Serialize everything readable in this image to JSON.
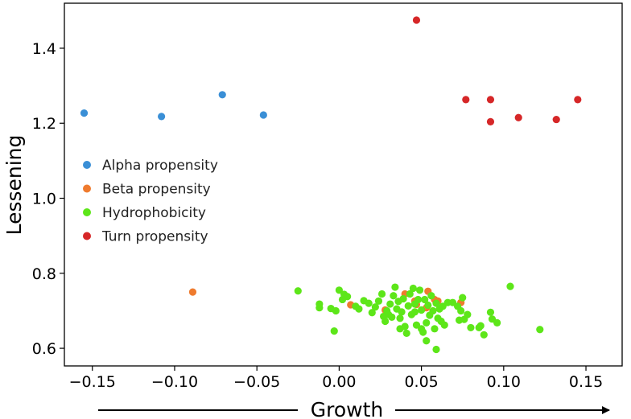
{
  "chart_data": {
    "type": "scatter",
    "xlabel": "Growth",
    "ylabel": "Lessening",
    "xlim": [
      -0.167,
      0.172
    ],
    "ylim": [
      0.553,
      1.52
    ],
    "xticks": [
      -0.15,
      -0.1,
      -0.05,
      0.0,
      0.05,
      0.1,
      0.15
    ],
    "xtick_labels": [
      "−0.15",
      "−0.10",
      "−0.05",
      "0.00",
      "0.05",
      "0.10",
      "0.15"
    ],
    "yticks": [
      0.6,
      0.8,
      1.0,
      1.2,
      1.4
    ],
    "ytick_labels": [
      "0.6",
      "0.8",
      "1.0",
      "1.2",
      "1.4"
    ],
    "legend_position": "center-left",
    "series": [
      {
        "name": "Alpha propensity",
        "color": "#3a8fd6",
        "points": [
          [
            -0.155,
            1.227
          ],
          [
            -0.108,
            1.218
          ],
          [
            -0.071,
            1.276
          ],
          [
            -0.046,
            1.222
          ]
        ]
      },
      {
        "name": "Beta propensity",
        "color": "#ef7b2e",
        "points": [
          [
            -0.089,
            0.75
          ],
          [
            0.007,
            0.716
          ],
          [
            0.028,
            0.702
          ],
          [
            0.04,
            0.745
          ],
          [
            0.046,
            0.726
          ],
          [
            0.047,
            0.717
          ],
          [
            0.053,
            0.708
          ],
          [
            0.054,
            0.752
          ],
          [
            0.058,
            0.73
          ],
          [
            0.06,
            0.726
          ],
          [
            0.074,
            0.722
          ]
        ]
      },
      {
        "name": "Hydrophobicity",
        "color": "#5de619",
        "points": [
          [
            -0.025,
            0.753
          ],
          [
            -0.012,
            0.708
          ],
          [
            -0.012,
            0.718
          ],
          [
            -0.005,
            0.706
          ],
          [
            -0.003,
            0.646
          ],
          [
            -0.002,
            0.7
          ],
          [
            0.0,
            0.755
          ],
          [
            0.002,
            0.73
          ],
          [
            0.003,
            0.744
          ],
          [
            0.005,
            0.738
          ],
          [
            0.01,
            0.712
          ],
          [
            0.012,
            0.705
          ],
          [
            0.015,
            0.727
          ],
          [
            0.018,
            0.72
          ],
          [
            0.02,
            0.695
          ],
          [
            0.022,
            0.71
          ],
          [
            0.024,
            0.726
          ],
          [
            0.026,
            0.745
          ],
          [
            0.027,
            0.685
          ],
          [
            0.028,
            0.672
          ],
          [
            0.029,
            0.7
          ],
          [
            0.03,
            0.69
          ],
          [
            0.031,
            0.718
          ],
          [
            0.032,
            0.683
          ],
          [
            0.033,
            0.74
          ],
          [
            0.034,
            0.763
          ],
          [
            0.035,
            0.705
          ],
          [
            0.036,
            0.725
          ],
          [
            0.037,
            0.68
          ],
          [
            0.037,
            0.652
          ],
          [
            0.038,
            0.697
          ],
          [
            0.039,
            0.732
          ],
          [
            0.04,
            0.658
          ],
          [
            0.041,
            0.64
          ],
          [
            0.042,
            0.713
          ],
          [
            0.043,
            0.745
          ],
          [
            0.044,
            0.69
          ],
          [
            0.045,
            0.76
          ],
          [
            0.046,
            0.718
          ],
          [
            0.046,
            0.697
          ],
          [
            0.047,
            0.662
          ],
          [
            0.048,
            0.73
          ],
          [
            0.049,
            0.755
          ],
          [
            0.05,
            0.652
          ],
          [
            0.05,
            0.702
          ],
          [
            0.051,
            0.643
          ],
          [
            0.052,
            0.73
          ],
          [
            0.053,
            0.668
          ],
          [
            0.053,
            0.62
          ],
          [
            0.054,
            0.715
          ],
          [
            0.055,
            0.688
          ],
          [
            0.056,
            0.74
          ],
          [
            0.057,
            0.7
          ],
          [
            0.058,
            0.652
          ],
          [
            0.059,
            0.597
          ],
          [
            0.059,
            0.72
          ],
          [
            0.06,
            0.68
          ],
          [
            0.061,
            0.705
          ],
          [
            0.062,
            0.672
          ],
          [
            0.063,
            0.712
          ],
          [
            0.064,
            0.662
          ],
          [
            0.066,
            0.722
          ],
          [
            0.069,
            0.722
          ],
          [
            0.072,
            0.712
          ],
          [
            0.073,
            0.675
          ],
          [
            0.074,
            0.7
          ],
          [
            0.075,
            0.735
          ],
          [
            0.076,
            0.677
          ],
          [
            0.078,
            0.69
          ],
          [
            0.08,
            0.655
          ],
          [
            0.085,
            0.655
          ],
          [
            0.086,
            0.66
          ],
          [
            0.088,
            0.636
          ],
          [
            0.092,
            0.696
          ],
          [
            0.093,
            0.678
          ],
          [
            0.096,
            0.668
          ],
          [
            0.104,
            0.765
          ],
          [
            0.122,
            0.65
          ]
        ]
      },
      {
        "name": "Turn propensity",
        "color": "#d62728",
        "points": [
          [
            0.047,
            1.475
          ],
          [
            0.077,
            1.263
          ],
          [
            0.092,
            1.263
          ],
          [
            0.092,
            1.204
          ],
          [
            0.109,
            1.215
          ],
          [
            0.132,
            1.21
          ],
          [
            0.145,
            1.263
          ]
        ]
      }
    ]
  }
}
